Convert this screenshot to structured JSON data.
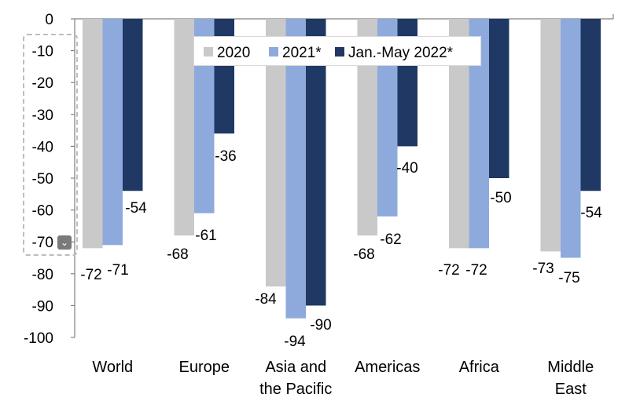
{
  "chart_data": {
    "type": "bar",
    "categories": [
      [
        "World"
      ],
      [
        "Europe"
      ],
      [
        "Asia and",
        "the Pacific"
      ],
      [
        "Americas"
      ],
      [
        "Africa"
      ],
      [
        "Middle",
        "East"
      ]
    ],
    "series": [
      {
        "name": "2020",
        "color": "#c9c9c9",
        "values": [
          -72,
          -68,
          -84,
          -68,
          -72,
          -73
        ]
      },
      {
        "name": "2021*",
        "color": "#8eaadc",
        "values": [
          -71,
          -61,
          -94,
          -62,
          -72,
          -75
        ]
      },
      {
        "name": "Jan.-May 2022*",
        "color": "#1f3864",
        "values": [
          -54,
          -36,
          -90,
          -40,
          -50,
          -54
        ]
      }
    ],
    "y_ticks": [
      "0",
      "-10",
      "-20",
      "-30",
      "-40",
      "-50",
      "-60",
      "-70",
      "-80",
      "-90",
      "-100"
    ],
    "ylim": [
      -100,
      0
    ],
    "legend_position": "top",
    "grid": false
  },
  "ui": {
    "axis_selection_icon": "chevron-down-icon"
  }
}
